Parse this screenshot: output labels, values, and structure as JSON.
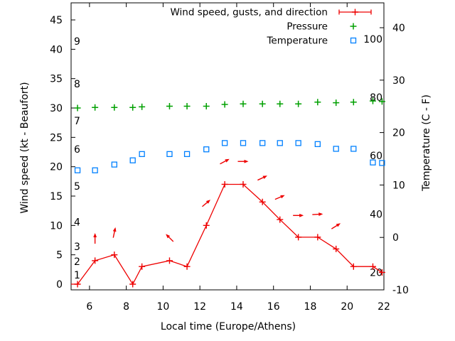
{
  "chart_data": {
    "type": "line",
    "title": "",
    "xlabel": "Local time (Europe/Athens)",
    "ylabel": "Wind speed (kt - Beaufort)",
    "y2label": "Temperature (C - F)",
    "grid": false,
    "x_axis": {
      "min": 5.0,
      "max": 22.0,
      "ticks": [
        6,
        8,
        10,
        12,
        14,
        16,
        18,
        20,
        22
      ]
    },
    "y_axis_kt": {
      "min": -1,
      "max": 48,
      "ticks": [
        0,
        5,
        10,
        15,
        20,
        25,
        30,
        35,
        40,
        45
      ]
    },
    "y2_axis_c": {
      "min": -10,
      "max": 44.7,
      "ticks": [
        -10,
        0,
        10,
        20,
        30,
        40
      ]
    },
    "beaufort_inner_labels": [
      {
        "label": "1",
        "kt": 1.6
      },
      {
        "label": "2",
        "kt": 3.9
      },
      {
        "label": "3",
        "kt": 6.4
      },
      {
        "label": "4",
        "kt": 10.6
      },
      {
        "label": "5",
        "kt": 16.7
      },
      {
        "label": "6",
        "kt": 23.0
      },
      {
        "label": "7",
        "kt": 27.8
      },
      {
        "label": "8",
        "kt": 34.1
      },
      {
        "label": "9",
        "kt": 41.4
      }
    ],
    "fahrenheit_inner_labels": [
      {
        "label": "20",
        "c": -6.7
      },
      {
        "label": "40",
        "c": 4.4
      },
      {
        "label": "60",
        "c": 15.6
      },
      {
        "label": "80",
        "c": 26.7
      },
      {
        "label": "100",
        "c": 37.8
      }
    ],
    "x": [
      5.35,
      6.3,
      7.35,
      8.35,
      8.85,
      10.35,
      11.3,
      12.35,
      13.35,
      14.35,
      15.4,
      16.35,
      17.35,
      18.4,
      19.4,
      20.35,
      21.4,
      21.9
    ],
    "series": [
      {
        "name": "Wind speed, gusts, and direction",
        "color": "#ee0000",
        "marker": "plus",
        "line": true,
        "axis": "kt",
        "edge_start": {
          "x": 5.0,
          "y": 0
        },
        "values": [
          0,
          4,
          5,
          0,
          3,
          4,
          3,
          10,
          17,
          17,
          14,
          11,
          8,
          8,
          6,
          3,
          3,
          2
        ]
      },
      {
        "name": "Pressure",
        "color": "#00a000",
        "marker": "plus",
        "line": false,
        "axis": "kt",
        "values": [
          30.0,
          30.1,
          30.1,
          30.1,
          30.2,
          30.3,
          30.3,
          30.3,
          30.6,
          30.7,
          30.7,
          30.7,
          30.7,
          31.0,
          30.9,
          31.0,
          31.2,
          31.1
        ]
      },
      {
        "name": "Temperature",
        "color": "#0080ff",
        "marker": "square",
        "line": false,
        "axis": "c",
        "values": [
          12.8,
          12.8,
          13.9,
          14.7,
          15.9,
          15.9,
          15.9,
          16.8,
          18.0,
          18.0,
          18.0,
          18.0,
          18.0,
          17.8,
          16.9,
          16.9,
          14.3,
          14.2
        ]
      }
    ],
    "gust_direction_arrows": [
      {
        "t": 6.3,
        "kt": 7.8,
        "dir_deg": 90
      },
      {
        "t": 7.35,
        "kt": 8.8,
        "dir_deg": 78
      },
      {
        "t": 10.35,
        "kt": 7.9,
        "dir_deg": 135
      },
      {
        "t": 12.35,
        "kt": 13.8,
        "dir_deg": 40
      },
      {
        "t": 13.35,
        "kt": 20.9,
        "dir_deg": 28
      },
      {
        "t": 14.35,
        "kt": 20.9,
        "dir_deg": 0
      },
      {
        "t": 15.4,
        "kt": 18.1,
        "dir_deg": 25
      },
      {
        "t": 16.35,
        "kt": 14.8,
        "dir_deg": 23
      },
      {
        "t": 17.35,
        "kt": 11.7,
        "dir_deg": 0
      },
      {
        "t": 18.4,
        "kt": 11.9,
        "dir_deg": 3
      },
      {
        "t": 19.4,
        "kt": 9.9,
        "dir_deg": 32
      }
    ],
    "legend": {
      "position": "top-right-inside",
      "entries": [
        {
          "label": "Wind speed, gusts, and direction",
          "marker": "errorbar-line",
          "color": "#ee0000"
        },
        {
          "label": "Pressure",
          "marker": "plus",
          "color": "#00a000"
        },
        {
          "label": "Temperature",
          "marker": "square",
          "color": "#0080ff"
        }
      ]
    },
    "colors": {
      "wind": "#ee0000",
      "pressure": "#00a000",
      "temperature": "#0080ff",
      "axis": "#000000"
    }
  }
}
